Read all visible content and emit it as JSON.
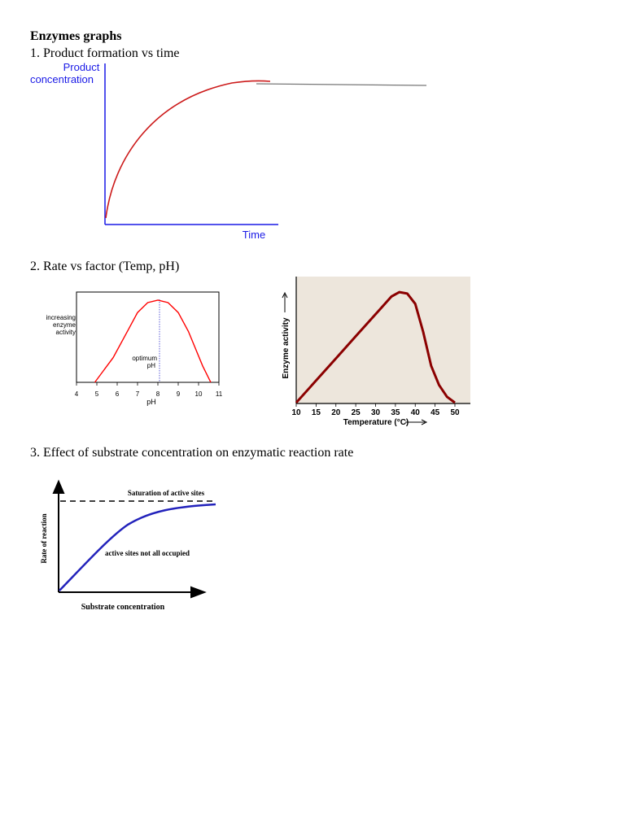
{
  "document": {
    "title": "Enzymes graphs",
    "sections": [
      "1. Product formation vs time",
      "2. Rate vs factor (Temp, pH)",
      "3. Effect of substrate concentration on enzymatic reaction rate"
    ]
  },
  "colors": {
    "axis_blue": "#1a1ae6",
    "curve_red": "#cc1a1a",
    "ph_red": "#ff0000",
    "temp_curve": "#8b0000",
    "temp_bg": "#ede6dc",
    "sub_curve": "#2222bb"
  },
  "chart_data": [
    {
      "type": "line",
      "ylabel_lines": [
        "Product",
        "concentration"
      ],
      "xlabel": "Time",
      "series": [
        {
          "shape": "rises steeply then levels off (plateau)"
        }
      ]
    },
    {
      "type": "line",
      "ylabel_lines": [
        "increasing",
        "enzyme",
        "activity"
      ],
      "xlabel": "pH",
      "x_ticks": [
        "4",
        "5",
        "6",
        "7",
        "8",
        "9",
        "10",
        "11"
      ],
      "xlim": [
        4,
        11
      ],
      "annotation_lines": [
        "optimum",
        "pH"
      ],
      "optimum_x": 8,
      "series": [
        {
          "x": [
            4.9,
            5.8,
            6.5,
            7.0,
            7.5,
            8.0,
            8.5,
            9.0,
            9.5,
            10.2,
            10.6
          ],
          "y": [
            0.0,
            0.3,
            0.62,
            0.85,
            0.97,
            1.0,
            0.97,
            0.85,
            0.62,
            0.2,
            0.0
          ]
        }
      ]
    },
    {
      "type": "line",
      "ylabel": "Enzyme activity",
      "xlabel": "Temperature (°C)",
      "x_ticks": [
        "10",
        "15",
        "20",
        "25",
        "30",
        "35",
        "40",
        "45",
        "50"
      ],
      "xlim": [
        10,
        50
      ],
      "ylim": [
        0,
        1
      ],
      "series": [
        {
          "x": [
            10,
            15,
            20,
            25,
            30,
            34,
            36,
            38,
            40,
            42,
            44,
            46,
            48,
            50
          ],
          "y": [
            0.0,
            0.15,
            0.3,
            0.45,
            0.6,
            0.72,
            0.75,
            0.74,
            0.67,
            0.48,
            0.25,
            0.12,
            0.04,
            0.0
          ]
        }
      ]
    },
    {
      "type": "line",
      "ylabel": "Rate of reaction",
      "xlabel": "Substrate concentration",
      "annotations": [
        "Saturation of active sites",
        "active sites not all occupied"
      ],
      "series": [
        {
          "shape": "rises roughly linearly then saturates below dashed line"
        }
      ]
    }
  ]
}
